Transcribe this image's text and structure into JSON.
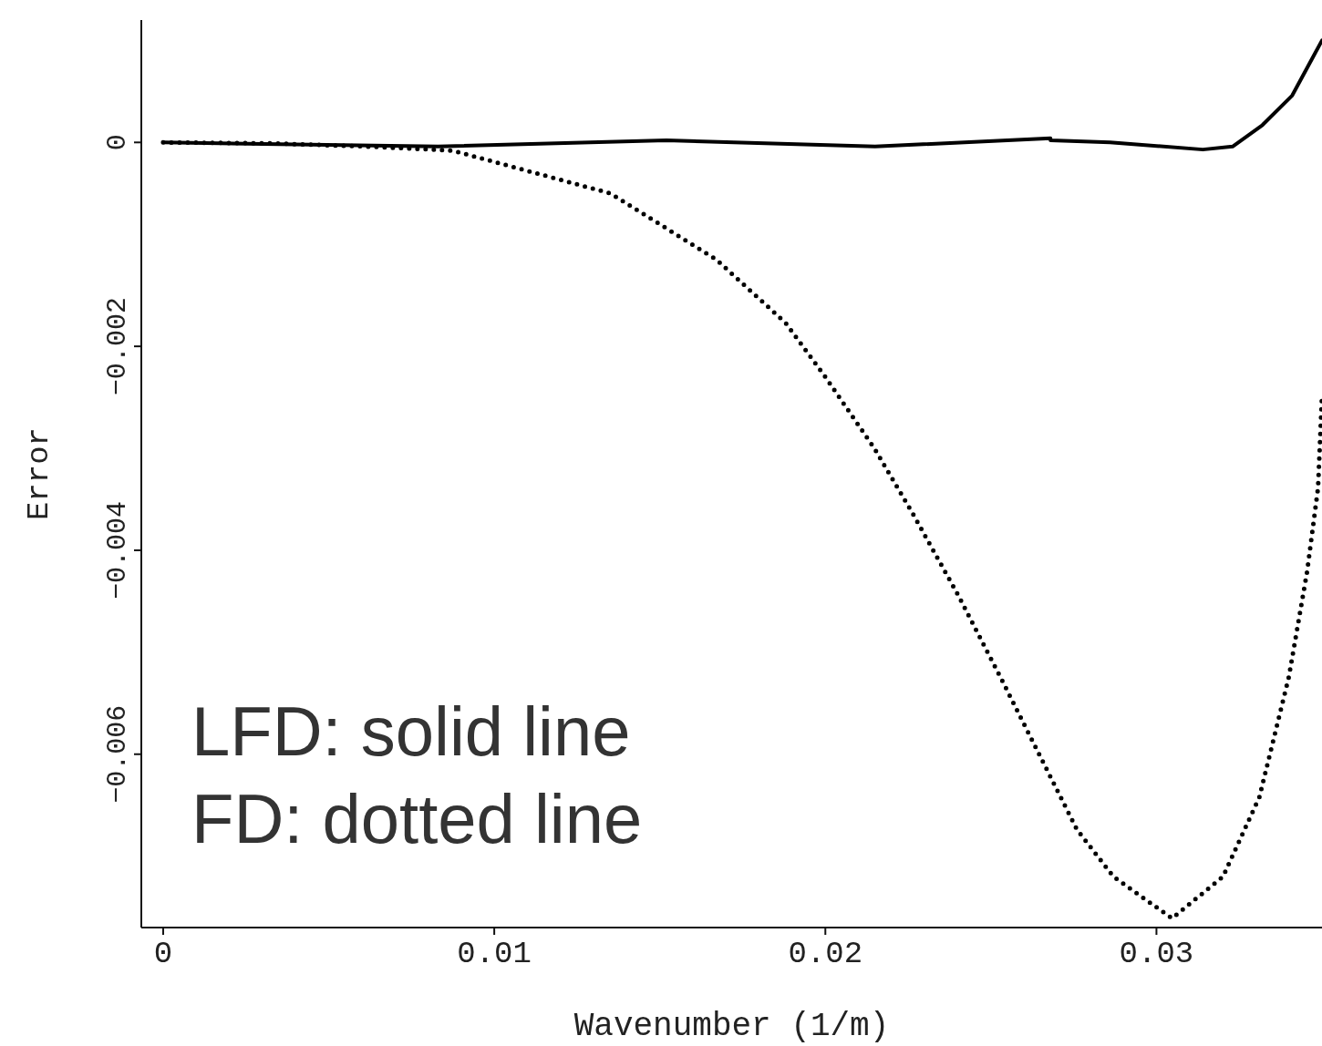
{
  "chart_data": {
    "type": "line",
    "xlabel": "Wavenumber (1/m)",
    "ylabel": "Error",
    "xlim": [
      -0.00066,
      0.035
    ],
    "ylim": [
      -0.0077,
      0.0012
    ],
    "xticks": [
      0,
      0.01,
      0.02,
      0.03
    ],
    "yticks": [
      0,
      {
        "value": -0.002,
        "label": "−0.002"
      },
      {
        "value": -0.004,
        "label": "−0.004"
      },
      {
        "value": -0.006,
        "label": "−0.006"
      }
    ],
    "grid": false,
    "legend": false,
    "marker": "none",
    "series": [
      {
        "color": "#000000",
        "line_style": "solid",
        "x": [
          0,
          0.0083,
          0.0152,
          0.0215,
          0.0268,
          0.0268,
          0.0286,
          0.0314,
          0.0323,
          0.0332,
          0.0341,
          0.0347,
          0.035
        ],
        "values": [
          0,
          -4e-05,
          2e-05,
          -4e-05,
          4e-05,
          2e-05,
          0,
          -7e-05,
          -4e-05,
          0.00017,
          0.00046,
          0.00082,
          0.001
        ]
      },
      {
        "color": "#000000",
        "line_style": "dotted",
        "x": [
          0,
          0.00334,
          0.00609,
          0.00874,
          0.01351,
          0.01671,
          0.0188,
          0.02,
          0.02148,
          0.02264,
          0.02401,
          0.02539,
          0.0276,
          0.0287,
          0.03047,
          0.03201,
          0.03311,
          0.034,
          0.03455,
          0.03488,
          0.035
        ],
        "values": [
          0,
          -1e-05,
          -4e-05,
          -8e-05,
          -0.0005,
          -0.00115,
          -0.00177,
          -0.0023,
          -0.003,
          -0.00364,
          -0.00444,
          -0.00531,
          -0.00674,
          -0.0072,
          -0.00761,
          -0.0072,
          -0.00642,
          -0.00524,
          -0.00421,
          -0.00339,
          -0.00248
        ]
      }
    ],
    "annotations": [
      "LFD: solid line",
      "FD: dotted line"
    ]
  }
}
